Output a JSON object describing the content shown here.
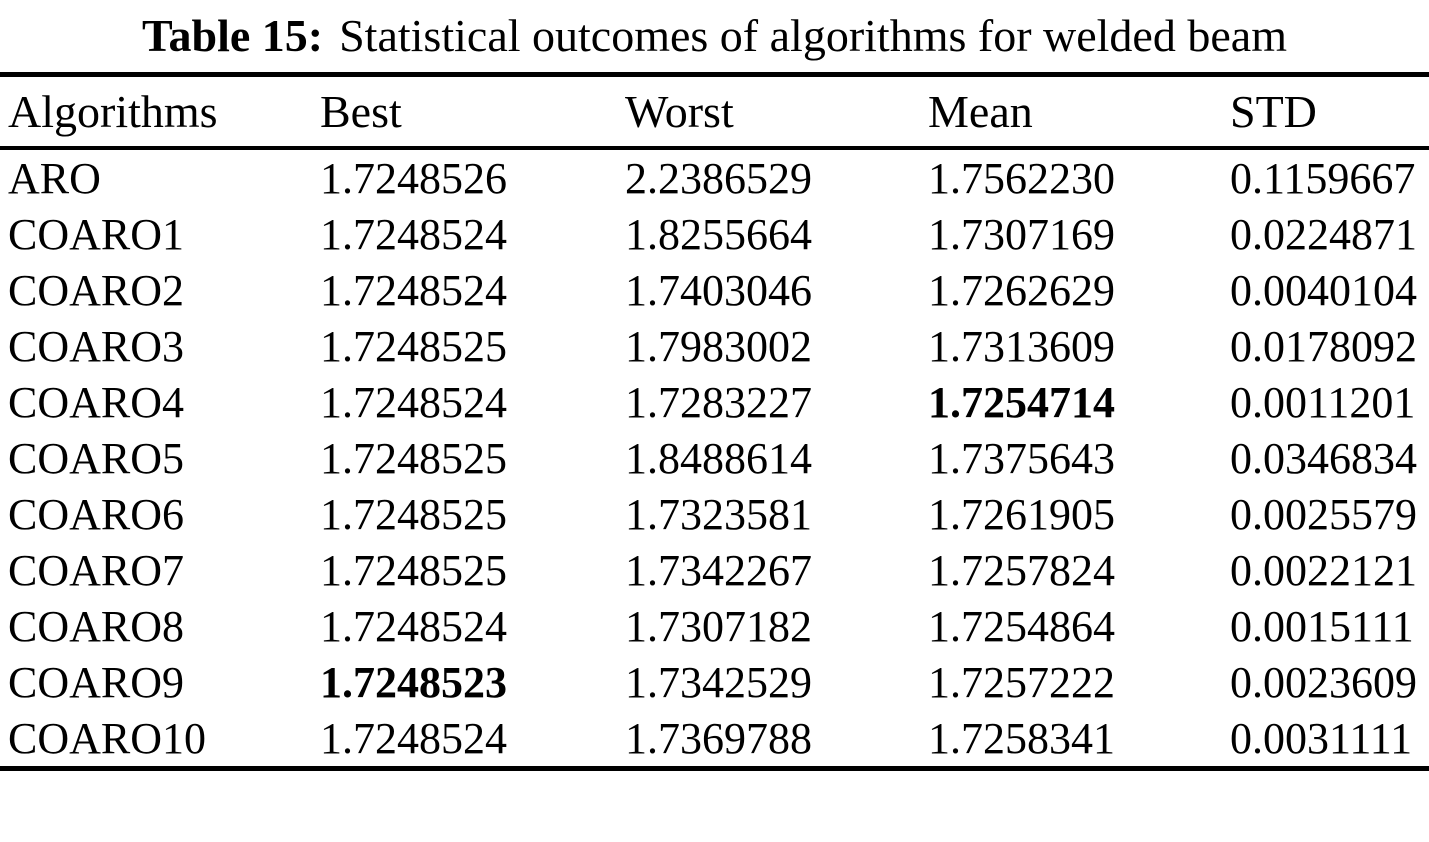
{
  "table": {
    "caption": {
      "label": "Table 15:",
      "text": "Statistical outcomes of algorithms for welded beam"
    },
    "columns": [
      "Algorithms",
      "Best",
      "Worst",
      "Mean",
      "STD"
    ],
    "column_keys": [
      "algorithm",
      "best",
      "worst",
      "mean",
      "std"
    ],
    "rows": [
      {
        "algorithm": "ARO",
        "best": "1.7248526",
        "worst": "2.2386529",
        "mean": "1.7562230",
        "std": "0.1159667",
        "bold_cells": []
      },
      {
        "algorithm": "COARO1",
        "best": "1.7248524",
        "worst": "1.8255664",
        "mean": "1.7307169",
        "std": "0.0224871",
        "bold_cells": []
      },
      {
        "algorithm": "COARO2",
        "best": "1.7248524",
        "worst": "1.7403046",
        "mean": "1.7262629",
        "std": "0.0040104",
        "bold_cells": []
      },
      {
        "algorithm": "COARO3",
        "best": "1.7248525",
        "worst": "1.7983002",
        "mean": "1.7313609",
        "std": "0.0178092",
        "bold_cells": []
      },
      {
        "algorithm": "COARO4",
        "best": "1.7248524",
        "worst": "1.7283227",
        "mean": "1.7254714",
        "std": "0.0011201",
        "bold_cells": [
          "mean"
        ]
      },
      {
        "algorithm": "COARO5",
        "best": "1.7248525",
        "worst": "1.8488614",
        "mean": "1.7375643",
        "std": "0.0346834",
        "bold_cells": []
      },
      {
        "algorithm": "COARO6",
        "best": "1.7248525",
        "worst": "1.7323581",
        "mean": "1.7261905",
        "std": "0.0025579",
        "bold_cells": []
      },
      {
        "algorithm": "COARO7",
        "best": "1.7248525",
        "worst": "1.7342267",
        "mean": "1.7257824",
        "std": "0.0022121",
        "bold_cells": []
      },
      {
        "algorithm": "COARO8",
        "best": "1.7248524",
        "worst": "1.7307182",
        "mean": "1.7254864",
        "std": "0.0015111",
        "bold_cells": []
      },
      {
        "algorithm": "COARO9",
        "best": "1.7248523",
        "worst": "1.7342529",
        "mean": "1.7257222",
        "std": "0.0023609",
        "bold_cells": [
          "best"
        ]
      },
      {
        "algorithm": "COARO10",
        "best": "1.7248524",
        "worst": "1.7369788",
        "mean": "1.7258341",
        "std": "0.0031111",
        "bold_cells": []
      }
    ],
    "colors": {
      "text": "#000000",
      "background": "#ffffff",
      "rule": "#000000"
    }
  }
}
